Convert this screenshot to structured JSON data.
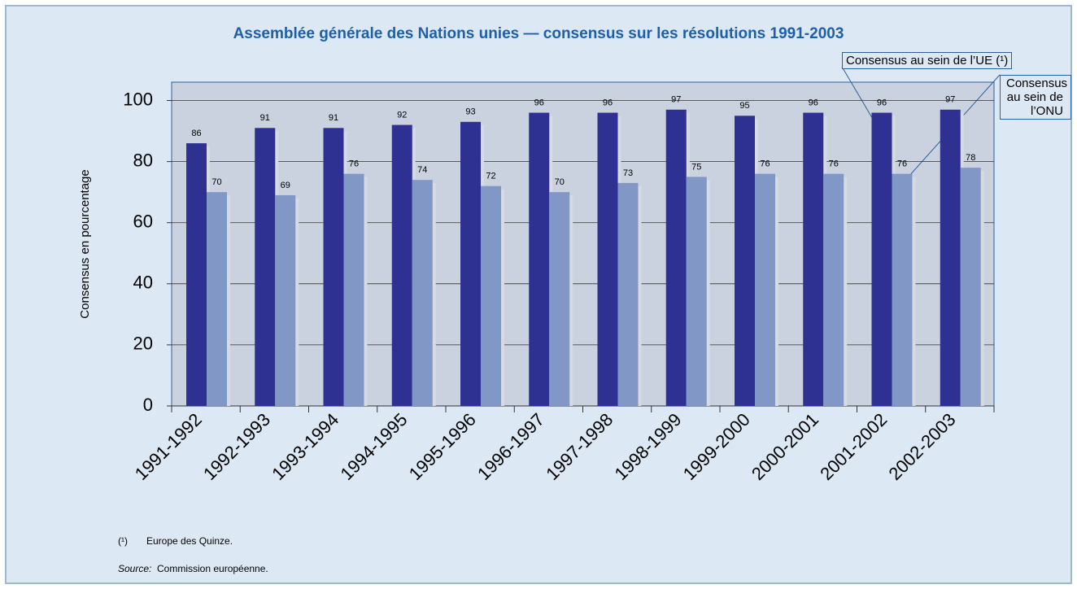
{
  "chart_data": {
    "type": "bar",
    "title": "Assemblée générale des Nations unies — consensus sur les résolutions 1991-2003",
    "y_label": "Consensus en pourcentage",
    "categories": [
      "1991-1992",
      "1992-1993",
      "1993-1994",
      "1994-1995",
      "1995-1996",
      "1996-1997",
      "1997-1998",
      "1998-1999",
      "1999-2000",
      "2000-2001",
      "2001-2002",
      "2002-2003"
    ],
    "series": [
      {
        "name": "Consensus au sein de l’UE (¹)",
        "color": "#2e3192",
        "values": [
          86,
          91,
          91,
          92,
          93,
          96,
          96,
          97,
          95,
          96,
          96,
          97
        ]
      },
      {
        "name": "Consensus au sein de l’ONU",
        "color": "#8197c6",
        "values": [
          70,
          69,
          76,
          74,
          72,
          70,
          73,
          75,
          76,
          76,
          76,
          78
        ]
      }
    ],
    "ylim": [
      0,
      106
    ],
    "yticks": [
      0,
      20,
      40,
      60,
      80,
      100
    ],
    "grid": true,
    "footnote": {
      "marker": "(¹)",
      "text": "Europe des Quinze."
    },
    "source": {
      "label": "Source:",
      "text": "Commission européenne."
    }
  }
}
